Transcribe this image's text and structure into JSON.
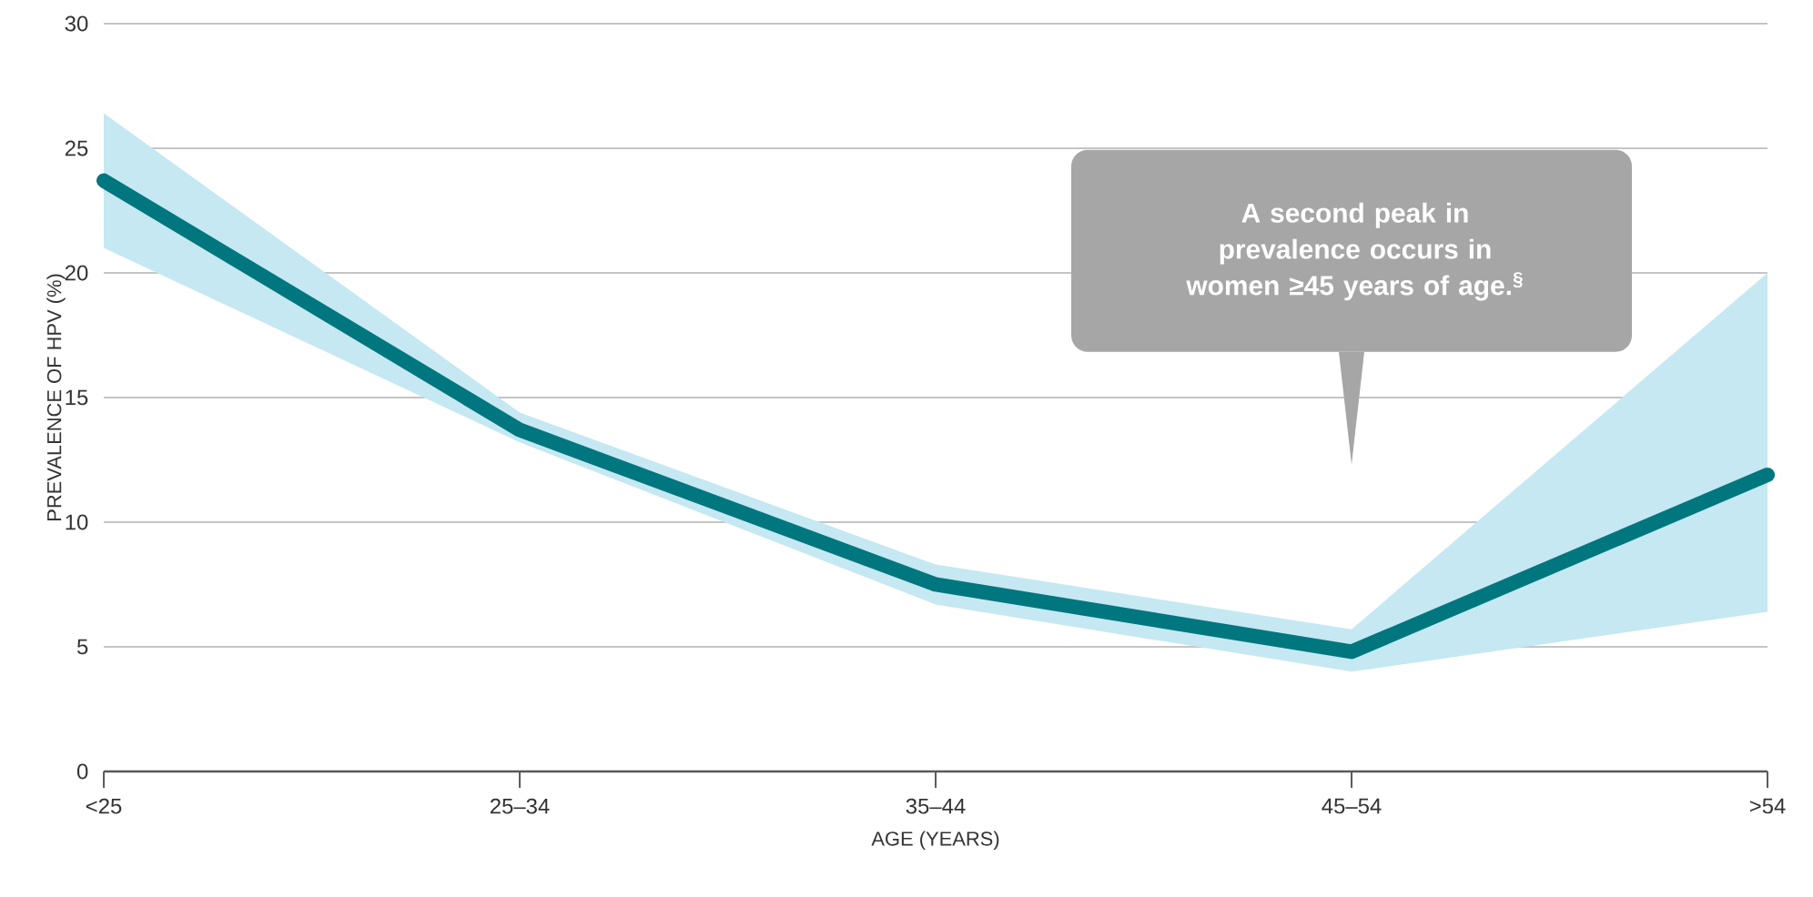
{
  "chart_data": {
    "type": "line",
    "xlabel": "AGE (YEARS)",
    "ylabel": "PREVALENCE OF HPV (%)",
    "categories": [
      "<25",
      "25–34",
      "35–44",
      "45–54",
      ">54"
    ],
    "series": [
      {
        "color": "#00767e",
        "values": [
          23.7,
          13.7,
          7.5,
          4.8,
          11.9
        ],
        "lower": [
          21.0,
          13.2,
          6.7,
          4.0,
          6.4
        ],
        "upper": [
          26.4,
          14.4,
          8.3,
          5.7,
          20.0
        ]
      }
    ],
    "ylim": [
      0,
      30
    ],
    "yticks": [
      0,
      5,
      10,
      15,
      20,
      25,
      30
    ],
    "grid": "y",
    "marker": "none",
    "line_style": "solid",
    "annotations": [
      "A second peak in prevalence occurs in women ≥45 years of age.$^{§}$"
    ]
  }
}
